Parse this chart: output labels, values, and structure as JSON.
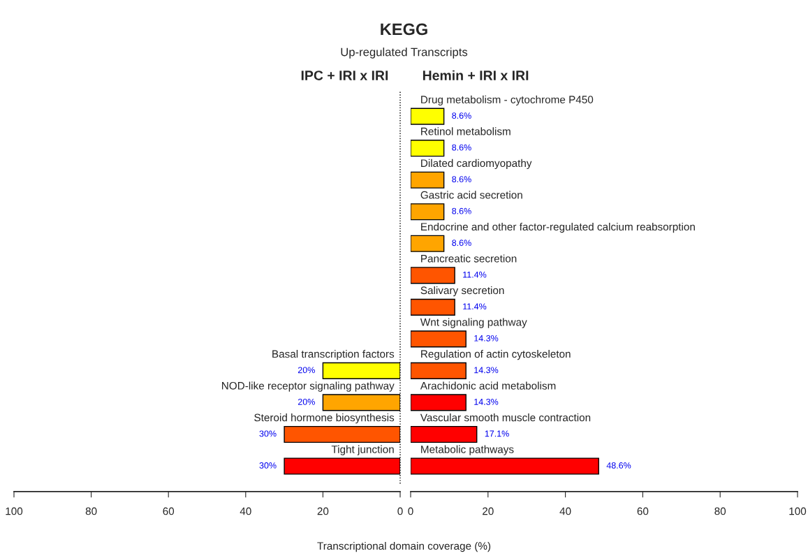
{
  "chart_data": [
    {
      "type": "bar",
      "orientation": "horizontal",
      "title": "IPC + IRI x IRI",
      "xlabel": "Transcriptional domain coverage (%)",
      "annotations": [
        "KEGG",
        "Up-regulated Transcripts"
      ],
      "categories": [
        "Basal transcription factors",
        "NOD-like receptor signaling pathway",
        "Steroid hormone biosynthesis",
        "Tight junction"
      ],
      "values": [
        20,
        20,
        30,
        30
      ],
      "colors": [
        "#ffff00",
        "#ffa500",
        "#ff5500",
        "#ff0000"
      ],
      "value_labels": [
        "20%",
        "20%",
        "30%",
        "30%"
      ],
      "xlim": [
        100,
        0
      ],
      "xticks": [
        100,
        80,
        60,
        40,
        20,
        0
      ],
      "ref_lines": [
        {
          "axis": "x",
          "value": 0,
          "line_style": "dotted",
          "color": "#000000"
        }
      ],
      "grid": false,
      "legend": false,
      "tick_labels": "x"
    },
    {
      "type": "bar",
      "orientation": "horizontal",
      "title": "Hemin + IRI x IRI",
      "categories": [
        "Drug metabolism - cytochrome P450",
        "Retinol metabolism",
        "Dilated cardiomyopathy",
        "Gastric acid secretion",
        "Endocrine and other factor-regulated calcium reabsorption",
        "Pancreatic secretion",
        "Salivary secretion",
        "Wnt signaling pathway",
        "Regulation of actin cytoskeleton",
        "Arachidonic acid metabolism",
        "Vascular smooth muscle contraction",
        "Metabolic pathways"
      ],
      "values": [
        8.6,
        8.6,
        8.6,
        8.6,
        8.6,
        11.4,
        11.4,
        14.3,
        14.3,
        14.3,
        17.1,
        48.6
      ],
      "colors": [
        "#ffff00",
        "#ffff00",
        "#ffa500",
        "#ffa500",
        "#ffa500",
        "#ff5500",
        "#ff5500",
        "#ff5500",
        "#ff5500",
        "#ff0000",
        "#ff0000",
        "#ff0000"
      ],
      "value_labels": [
        "8.6%",
        "8.6%",
        "8.6%",
        "8.6%",
        "8.6%",
        "11.4%",
        "11.4%",
        "14.3%",
        "14.3%",
        "14.3%",
        "17.1%",
        "48.6%"
      ],
      "xlim": [
        0,
        100
      ],
      "xticks": [
        0,
        20,
        40,
        60,
        80,
        100
      ],
      "grid": false,
      "legend": false,
      "tick_labels": "x"
    }
  ]
}
